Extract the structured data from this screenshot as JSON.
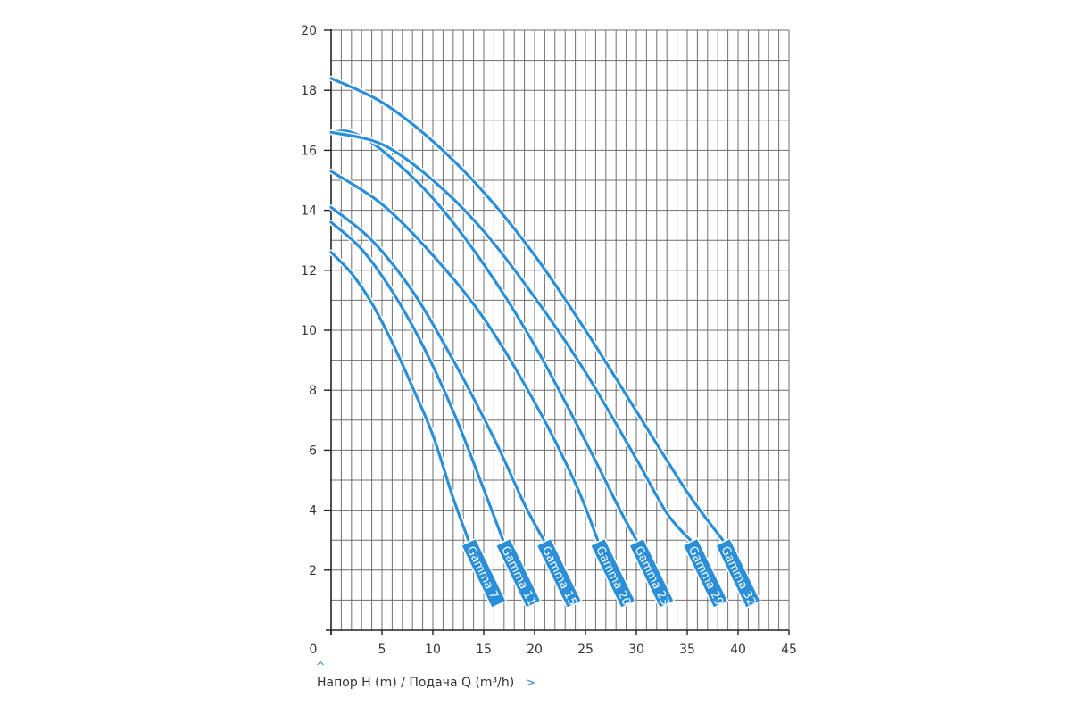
{
  "chart_data": {
    "type": "line",
    "title": "",
    "xlabel": "Напор H (m) / Подача Q (m³/h)",
    "ylabel": "",
    "xlim": [
      0,
      45
    ],
    "ylim": [
      0,
      20
    ],
    "x_ticks": [
      0,
      5,
      10,
      15,
      20,
      25,
      30,
      35,
      40,
      45
    ],
    "y_ticks": [
      2,
      4,
      6,
      8,
      10,
      12,
      14,
      16,
      18,
      20
    ],
    "grid": true,
    "line_color": "#2a8fd8",
    "series": [
      {
        "name": "Gamma 7",
        "x": [
          0,
          2,
          4,
          6,
          8,
          10,
          12,
          13.5
        ],
        "y": [
          12.6,
          11.9,
          10.9,
          9.6,
          8.1,
          6.5,
          4.4,
          3.0
        ]
      },
      {
        "name": "Gamma 11",
        "x": [
          0,
          3,
          6,
          9,
          12,
          15,
          16.9
        ],
        "y": [
          13.6,
          12.7,
          11.3,
          9.5,
          7.3,
          4.7,
          3.0
        ]
      },
      {
        "name": "Gamma 15",
        "x": [
          0,
          4,
          8,
          12,
          16,
          19,
          20.9
        ],
        "y": [
          14.1,
          13.0,
          11.3,
          9.0,
          6.4,
          4.2,
          3.0
        ]
      },
      {
        "name": "Gamma 20",
        "x": [
          0,
          5,
          10,
          15,
          20,
          24,
          26.2
        ],
        "y": [
          15.3,
          14.2,
          12.5,
          10.4,
          7.6,
          4.9,
          3.0
        ]
      },
      {
        "name": "Gamma 23",
        "x": [
          0,
          2,
          5,
          10,
          15,
          20,
          25,
          28.4,
          30.0
        ],
        "y": [
          16.6,
          16.6,
          16.0,
          14.4,
          12.2,
          9.5,
          6.3,
          4.0,
          3.0
        ]
      },
      {
        "name": "Gamma 29",
        "x": [
          0,
          5,
          10,
          15,
          20,
          25,
          30,
          33,
          35.3
        ],
        "y": [
          16.6,
          16.2,
          15.0,
          13.3,
          11.1,
          8.6,
          5.7,
          3.9,
          3.0
        ]
      },
      {
        "name": "Gamma 32",
        "x": [
          0,
          5,
          10,
          15,
          20,
          25,
          30,
          35,
          38.5
        ],
        "y": [
          18.4,
          17.6,
          16.3,
          14.6,
          12.5,
          10.0,
          7.3,
          4.6,
          3.0
        ]
      }
    ]
  }
}
